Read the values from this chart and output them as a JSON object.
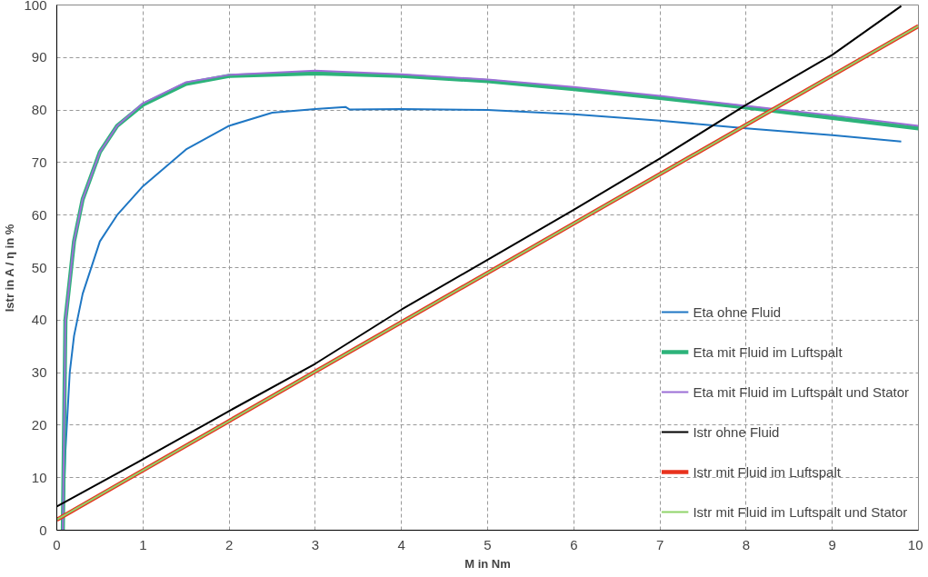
{
  "chart_data": {
    "type": "line",
    "xlabel": "M in Nm",
    "ylabel": "Istr in A / η in %",
    "xlim": [
      0,
      10
    ],
    "ylim": [
      0,
      100
    ],
    "xticks": [
      0,
      1,
      2,
      3,
      4,
      5,
      6,
      7,
      8,
      9,
      10
    ],
    "yticks": [
      0,
      10,
      20,
      30,
      40,
      50,
      60,
      70,
      80,
      90,
      100
    ],
    "grid": true,
    "legend": "bottom right",
    "line_style": "solid",
    "marker": "none",
    "series": [
      {
        "name": "Eta ohne Fluid",
        "color": "#1f77c4",
        "x": [
          0.07,
          0.1,
          0.15,
          0.2,
          0.3,
          0.5,
          0.7,
          1,
          1.5,
          2,
          2.5,
          3,
          3.35,
          3.4,
          4,
          5,
          6,
          7,
          8,
          9,
          9.8
        ],
        "values": [
          0,
          15,
          30,
          37,
          45,
          55,
          60,
          65.5,
          72.5,
          77,
          79.5,
          80.2,
          80.6,
          80.1,
          80.2,
          80,
          79.2,
          78,
          76.5,
          75.2,
          74
        ]
      },
      {
        "name": "Eta mit Fluid im Luftspalt",
        "color": "#2db37a",
        "x": [
          0.07,
          0.1,
          0.2,
          0.3,
          0.5,
          0.7,
          1,
          1.5,
          2,
          3,
          4,
          5,
          6,
          7,
          8,
          9,
          10
        ],
        "values": [
          0,
          40,
          55,
          63,
          72,
          77,
          81,
          85,
          86.5,
          87,
          86.5,
          85.5,
          84,
          82.3,
          80.5,
          78.5,
          76.5
        ]
      },
      {
        "name": "Eta mit Fluid im Luftspalt und Stator",
        "color": "#9b6fd6",
        "x": [
          0.07,
          0.1,
          0.2,
          0.3,
          0.5,
          0.7,
          1,
          1.5,
          2,
          3,
          4,
          5,
          6,
          7,
          8,
          9,
          10
        ],
        "values": [
          0,
          40,
          55,
          63,
          72,
          77,
          81.3,
          85.3,
          86.7,
          87.5,
          86.8,
          85.8,
          84.4,
          82.7,
          80.8,
          79,
          77
        ]
      },
      {
        "name": "Istr ohne Fluid",
        "color": "#000000",
        "x": [
          0,
          1,
          2,
          3,
          4,
          5,
          6,
          7,
          8,
          9,
          9.8
        ],
        "values": [
          4.5,
          13.5,
          22.7,
          31.7,
          42,
          51.5,
          61,
          70.8,
          81,
          90.5,
          99.8
        ]
      },
      {
        "name": "Istr mit Fluid im Luftspalt",
        "color": "#e8321e",
        "x": [
          0,
          10
        ],
        "values": [
          2,
          96
        ]
      },
      {
        "name": "Istr mit Fluid im Luftspalt und Stator",
        "color": "#8fd46a",
        "x": [
          0,
          10
        ],
        "values": [
          2,
          96
        ]
      }
    ]
  }
}
